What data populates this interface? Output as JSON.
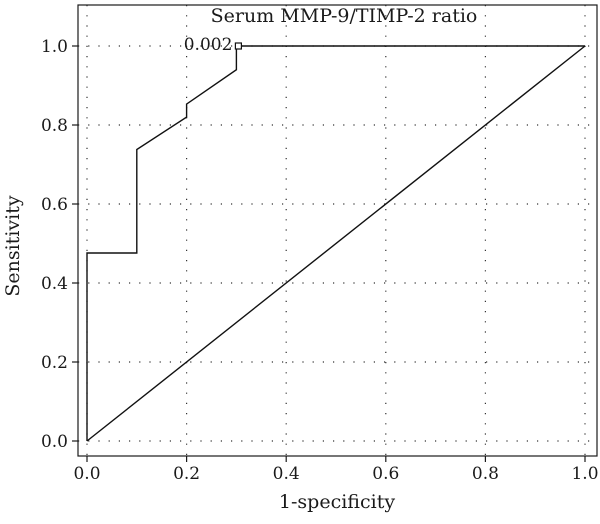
{
  "chart_data": {
    "type": "line",
    "title": "Serum MMP-9/TIMP-2 ratio",
    "xlabel": "1-specificity",
    "ylabel": "Sensitivity",
    "xlim": [
      0,
      1
    ],
    "ylim": [
      0,
      1
    ],
    "xticks": [
      "0.0",
      "0.2",
      "0.4",
      "0.6",
      "0.8",
      "1.0"
    ],
    "yticks": [
      "0.0",
      "0.2",
      "0.4",
      "0.6",
      "0.8",
      "1.0"
    ],
    "grid": "dotted",
    "series": [
      {
        "role": "roc-curve",
        "points": [
          [
            0,
            0
          ],
          [
            0,
            0.476
          ],
          [
            0.1,
            0.476
          ],
          [
            0.1,
            0.738
          ],
          [
            0.2,
            0.82
          ],
          [
            0.2,
            0.853
          ],
          [
            0.3,
            0.94
          ],
          [
            0.3,
            1.0
          ],
          [
            1.0,
            1.0
          ]
        ]
      },
      {
        "role": "reference-diagonal",
        "points": [
          [
            0,
            0
          ],
          [
            1.0,
            1.0
          ]
        ]
      }
    ],
    "annotations": [
      {
        "text": "0.002",
        "point": [
          0.3,
          1.0
        ],
        "marker": "square"
      }
    ]
  }
}
